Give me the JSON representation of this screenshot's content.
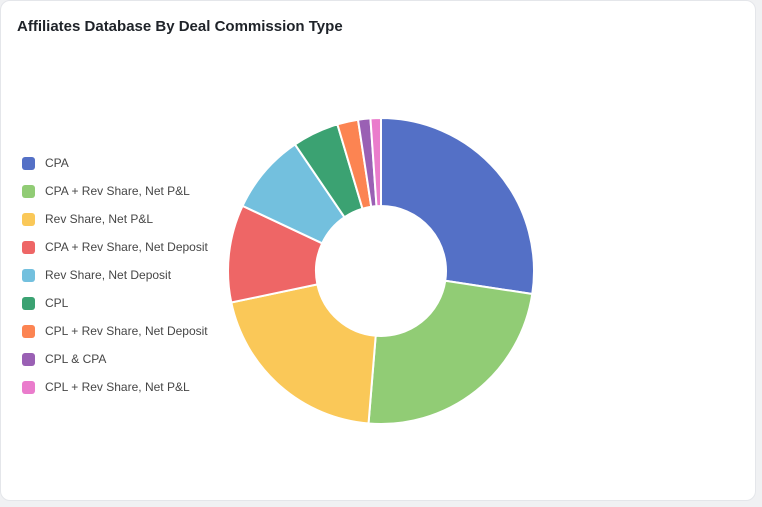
{
  "chart_data": {
    "type": "pie",
    "variant": "donut",
    "title": "Affiliates Database By Deal Commission Type",
    "legend_position": "left",
    "categories": [
      "CPA",
      "CPA + Rev Share, Net P&L",
      "Rev Share, Net P&L",
      "CPA + Rev Share, Net Deposit",
      "Rev Share, Net Deposit",
      "CPL",
      "CPL + Rev Share, Net Deposit",
      "CPL & CPA",
      "CPL + Rev Share, Net P&L"
    ],
    "values": [
      27.4,
      23.9,
      20.4,
      10.3,
      8.5,
      4.9,
      2.2,
      1.3,
      1.1
    ],
    "colors": [
      "#5470c6",
      "#91cc75",
      "#fac858",
      "#ee6666",
      "#73c0de",
      "#3ba272",
      "#fc8452",
      "#9a60b4",
      "#ea7ccc"
    ]
  }
}
